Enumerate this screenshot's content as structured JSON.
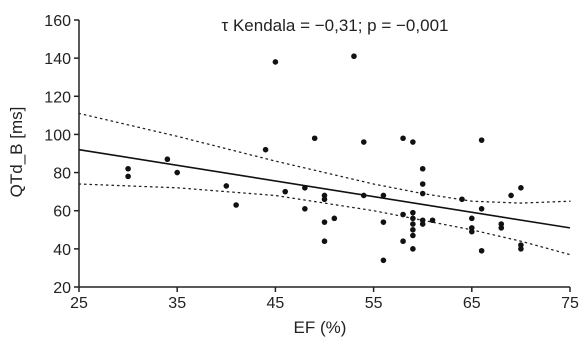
{
  "chart_data": {
    "type": "scatter",
    "title": "",
    "annotation": "τ Kendala = −0,31; p = −0,001",
    "xlabel": "EF (%)",
    "ylabel": "QTd_B [ms]",
    "xlim": [
      25,
      75
    ],
    "ylim": [
      20,
      160
    ],
    "xticks": [
      25,
      35,
      45,
      55,
      65,
      75
    ],
    "yticks": [
      20,
      40,
      60,
      80,
      100,
      120,
      140,
      160
    ],
    "grid": false,
    "points": [
      {
        "x": 30,
        "y": 82
      },
      {
        "x": 30,
        "y": 78
      },
      {
        "x": 34,
        "y": 87
      },
      {
        "x": 35,
        "y": 80
      },
      {
        "x": 40,
        "y": 73
      },
      {
        "x": 41,
        "y": 63
      },
      {
        "x": 44,
        "y": 92
      },
      {
        "x": 45,
        "y": 138
      },
      {
        "x": 46,
        "y": 70
      },
      {
        "x": 48,
        "y": 72
      },
      {
        "x": 48,
        "y": 61
      },
      {
        "x": 49,
        "y": 98
      },
      {
        "x": 50,
        "y": 68
      },
      {
        "x": 50,
        "y": 66
      },
      {
        "x": 50,
        "y": 54
      },
      {
        "x": 50,
        "y": 44
      },
      {
        "x": 51,
        "y": 56
      },
      {
        "x": 53,
        "y": 141
      },
      {
        "x": 54,
        "y": 96
      },
      {
        "x": 54,
        "y": 68
      },
      {
        "x": 56,
        "y": 68
      },
      {
        "x": 56,
        "y": 54
      },
      {
        "x": 56,
        "y": 34
      },
      {
        "x": 58,
        "y": 98
      },
      {
        "x": 58,
        "y": 58
      },
      {
        "x": 58,
        "y": 44
      },
      {
        "x": 59,
        "y": 96
      },
      {
        "x": 59,
        "y": 59
      },
      {
        "x": 59,
        "y": 56
      },
      {
        "x": 59,
        "y": 53
      },
      {
        "x": 59,
        "y": 50
      },
      {
        "x": 59,
        "y": 47
      },
      {
        "x": 59,
        "y": 40
      },
      {
        "x": 60,
        "y": 82
      },
      {
        "x": 60,
        "y": 74
      },
      {
        "x": 60,
        "y": 69
      },
      {
        "x": 60,
        "y": 55
      },
      {
        "x": 60,
        "y": 53
      },
      {
        "x": 61,
        "y": 55
      },
      {
        "x": 64,
        "y": 66
      },
      {
        "x": 65,
        "y": 56
      },
      {
        "x": 65,
        "y": 51
      },
      {
        "x": 65,
        "y": 49
      },
      {
        "x": 66,
        "y": 97
      },
      {
        "x": 66,
        "y": 61
      },
      {
        "x": 66,
        "y": 39
      },
      {
        "x": 68,
        "y": 53
      },
      {
        "x": 68,
        "y": 51
      },
      {
        "x": 69,
        "y": 68
      },
      {
        "x": 70,
        "y": 72
      },
      {
        "x": 70,
        "y": 42
      },
      {
        "x": 70,
        "y": 40
      }
    ],
    "regression_line": {
      "x": [
        25,
        75
      ],
      "y": [
        92,
        51
      ]
    },
    "confidence_upper": {
      "x": [
        25,
        35,
        45,
        55,
        60,
        65,
        70,
        75
      ],
      "y": [
        111,
        99,
        86,
        74,
        69,
        65,
        64,
        65
      ]
    },
    "confidence_lower": {
      "x": [
        25,
        35,
        45,
        55,
        60,
        65,
        70,
        75
      ],
      "y": [
        74,
        72,
        68,
        60,
        55,
        50,
        44,
        37
      ]
    }
  }
}
